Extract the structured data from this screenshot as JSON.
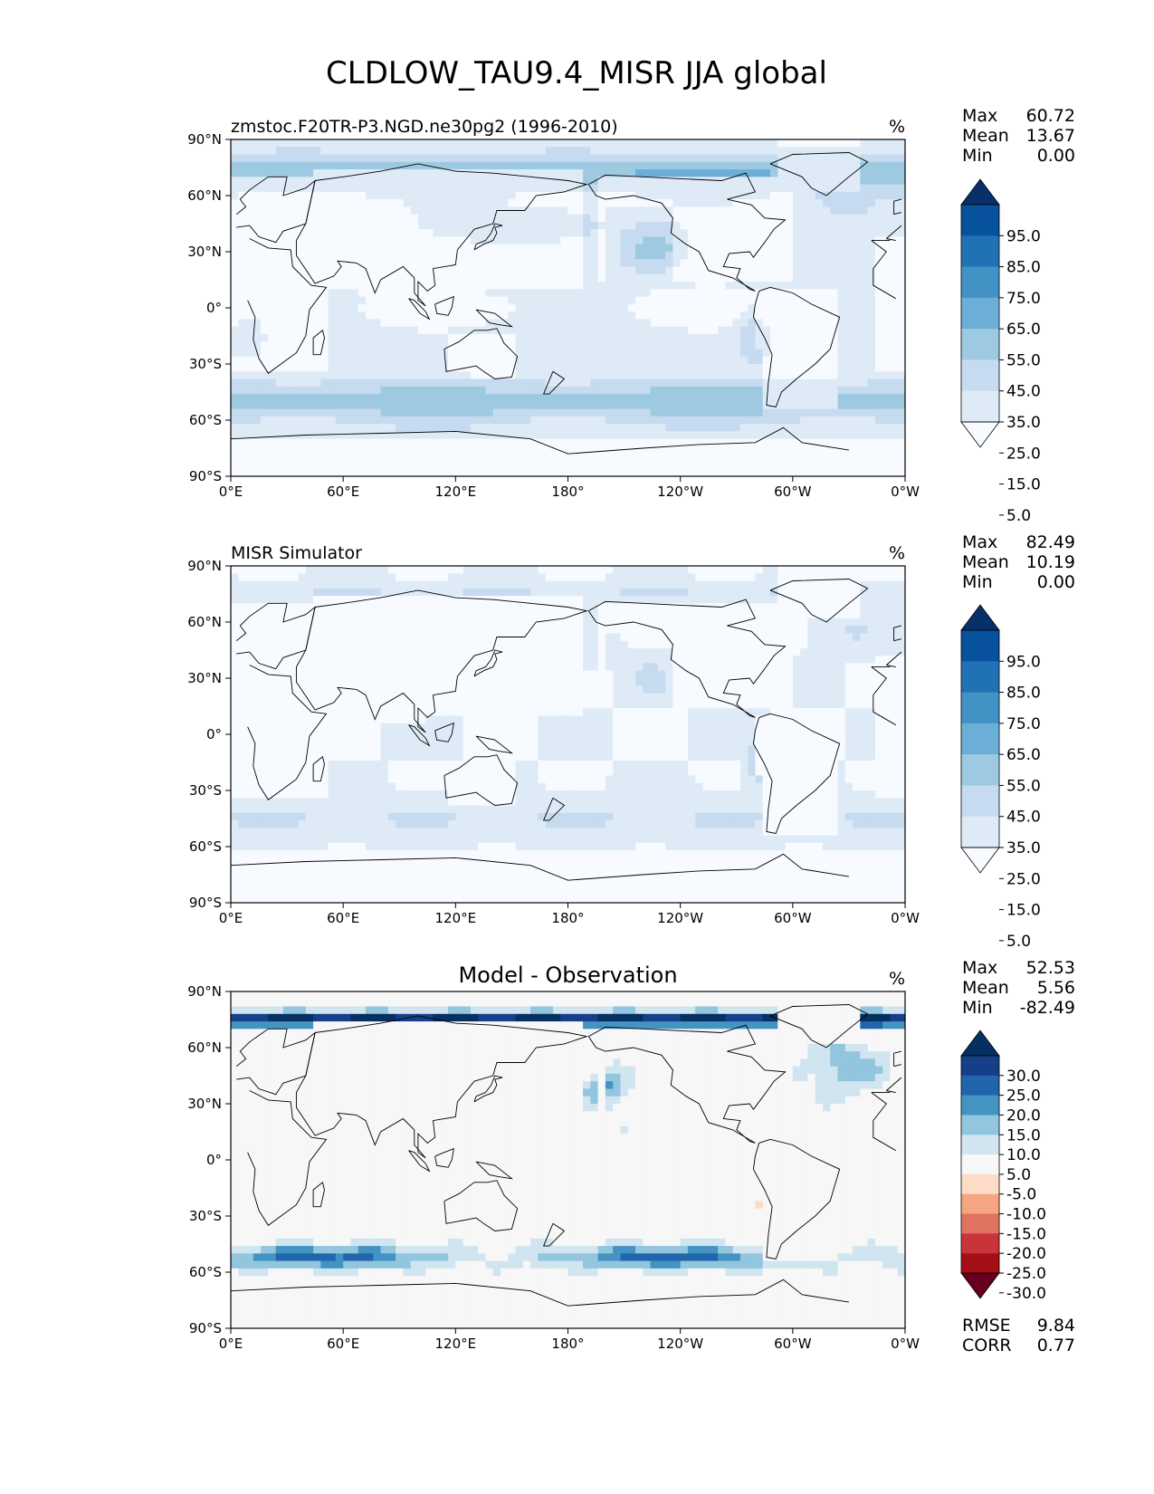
{
  "figure": {
    "title": "CLDLOW_TAU9.4_MISR JJA global"
  },
  "axes": {
    "lon_ticks": [
      "0°E",
      "60°E",
      "120°E",
      "180°",
      "120°W",
      "60°W",
      "0°W"
    ],
    "lat_ticks": [
      "90°N",
      "60°N",
      "30°N",
      "0°",
      "30°S",
      "60°S",
      "90°S"
    ]
  },
  "colors": {
    "blues": [
      "#f7fbff",
      "#deebf7",
      "#c6dbef",
      "#9ecae1",
      "#6baed6",
      "#4292c6",
      "#2171b5",
      "#08519c",
      "#08306b"
    ],
    "diff": [
      "#67001f",
      "#a50f15",
      "#c9343b",
      "#e0735f",
      "#f4a582",
      "#fddbc7",
      "#f7f7f7",
      "#d1e5f0",
      "#92c5de",
      "#4393c3",
      "#2166ac",
      "#163f8a",
      "#053061"
    ],
    "land_outline": "#000000"
  },
  "panels": [
    {
      "title_left": "zmstoc.F20TR-P3.NGD.ne30pg2 (1996-2010)",
      "title_center": "",
      "units": "%",
      "stats": [
        {
          "label": "Max",
          "value": "60.72"
        },
        {
          "label": "Mean",
          "value": "13.67"
        },
        {
          "label": "Min",
          "value": "0.00"
        }
      ],
      "colorbar": {
        "palette": "blues",
        "labels": [
          "95.0",
          "85.0",
          "75.0",
          "65.0",
          "55.0",
          "45.0",
          "35.0",
          "25.0",
          "15.0",
          "5.0"
        ]
      },
      "footer_stats": []
    },
    {
      "title_left": "MISR Simulator",
      "title_center": "",
      "units": "%",
      "stats": [
        {
          "label": "Max",
          "value": "82.49"
        },
        {
          "label": "Mean",
          "value": "10.19"
        },
        {
          "label": "Min",
          "value": "0.00"
        }
      ],
      "colorbar": {
        "palette": "blues",
        "labels": [
          "95.0",
          "85.0",
          "75.0",
          "65.0",
          "55.0",
          "45.0",
          "35.0",
          "25.0",
          "15.0",
          "5.0"
        ]
      },
      "footer_stats": []
    },
    {
      "title_left": "",
      "title_center": "Model - Observation",
      "units": "%",
      "stats": [
        {
          "label": "Max",
          "value": "52.53"
        },
        {
          "label": "Mean",
          "value": "5.56"
        },
        {
          "label": "Min",
          "value": "-82.49"
        }
      ],
      "colorbar": {
        "palette": "diff",
        "labels": [
          "30.0",
          "25.0",
          "20.0",
          "15.0",
          "10.0",
          "5.0",
          "-5.0",
          "-10.0",
          "-15.0",
          "-20.0",
          "-25.0",
          "-30.0"
        ]
      },
      "footer_stats": [
        {
          "label": "RMSE",
          "value": "9.84"
        },
        {
          "label": "CORR",
          "value": "0.77"
        }
      ]
    }
  ],
  "chart_data": {
    "type": "heatmap",
    "title": "CLDLOW_TAU9.4_MISR JJA global",
    "projection": "equirectangular",
    "xlim": [
      0,
      360
    ],
    "ylim": [
      -90,
      90
    ],
    "x_ticks": [
      0,
      60,
      120,
      180,
      240,
      300,
      360
    ],
    "y_ticks": [
      90,
      60,
      30,
      0,
      -30,
      -60,
      -90
    ],
    "panels": [
      {
        "name": "zmstoc.F20TR-P3.NGD.ne30pg2 (1996-2010)",
        "units": "%",
        "contour_levels": [
          0,
          5,
          15,
          25,
          35,
          45,
          55,
          65,
          75,
          85,
          95,
          100
        ],
        "max": 60.72,
        "mean": 13.67,
        "min": 0.0
      },
      {
        "name": "MISR Simulator",
        "units": "%",
        "contour_levels": [
          0,
          5,
          15,
          25,
          35,
          45,
          55,
          65,
          75,
          85,
          95,
          100
        ],
        "max": 82.49,
        "mean": 10.19,
        "min": 0.0
      },
      {
        "name": "Model - Observation",
        "units": "%",
        "contour_levels": [
          -30,
          -25,
          -20,
          -15,
          -10,
          -5,
          5,
          10,
          15,
          20,
          25,
          30
        ],
        "max": 52.53,
        "mean": 5.56,
        "min": -82.49,
        "rmse": 9.84,
        "corr": 0.77
      }
    ]
  }
}
